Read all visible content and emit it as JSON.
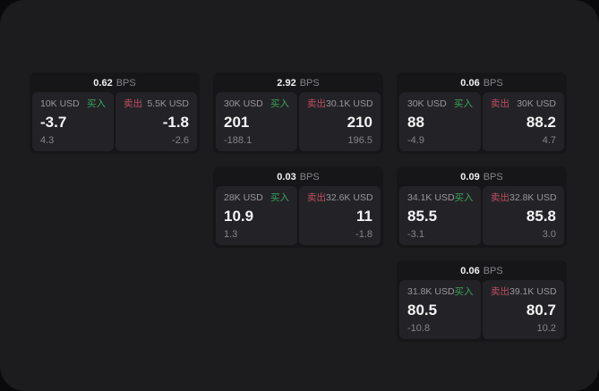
{
  "labels": {
    "buy": "买入",
    "sell": "卖出",
    "bps_suffix": "BPS"
  },
  "colors": {
    "buy_green": "#3ba35a",
    "sell_red": "#bf4d61",
    "surface": "#1c1c1e",
    "card_bg": "#161618",
    "panel_bg": "#232327"
  },
  "cards": [
    {
      "bps": "0.62",
      "buy": {
        "amount": "10K USD",
        "value": "-3.7",
        "sub": "4.3"
      },
      "sell": {
        "amount": "5.5K USD",
        "value": "-1.8",
        "sub": "-2.6"
      }
    },
    {
      "bps": "2.92",
      "buy": {
        "amount": "30K USD",
        "value": "201",
        "sub": "-188.1"
      },
      "sell": {
        "amount": "30.1K USD",
        "value": "210",
        "sub": "196.5"
      }
    },
    {
      "bps": "0.06",
      "buy": {
        "amount": "30K USD",
        "value": "88",
        "sub": "-4.9"
      },
      "sell": {
        "amount": "30K USD",
        "value": "88.2",
        "sub": "4.7"
      }
    },
    {
      "bps": "0.03",
      "buy": {
        "amount": "28K USD",
        "value": "10.9",
        "sub": "1.3"
      },
      "sell": {
        "amount": "32.6K USD",
        "value": "11",
        "sub": "-1.8"
      }
    },
    {
      "bps": "0.09",
      "buy": {
        "amount": "34.1K USD",
        "value": "85.5",
        "sub": "-3.1"
      },
      "sell": {
        "amount": "32.8K USD",
        "value": "85.8",
        "sub": "3.0"
      }
    },
    {
      "bps": "0.06",
      "buy": {
        "amount": "31.8K USD",
        "value": "80.5",
        "sub": "-10.8"
      },
      "sell": {
        "amount": "39.1K USD",
        "value": "80.7",
        "sub": "10.2"
      }
    }
  ]
}
